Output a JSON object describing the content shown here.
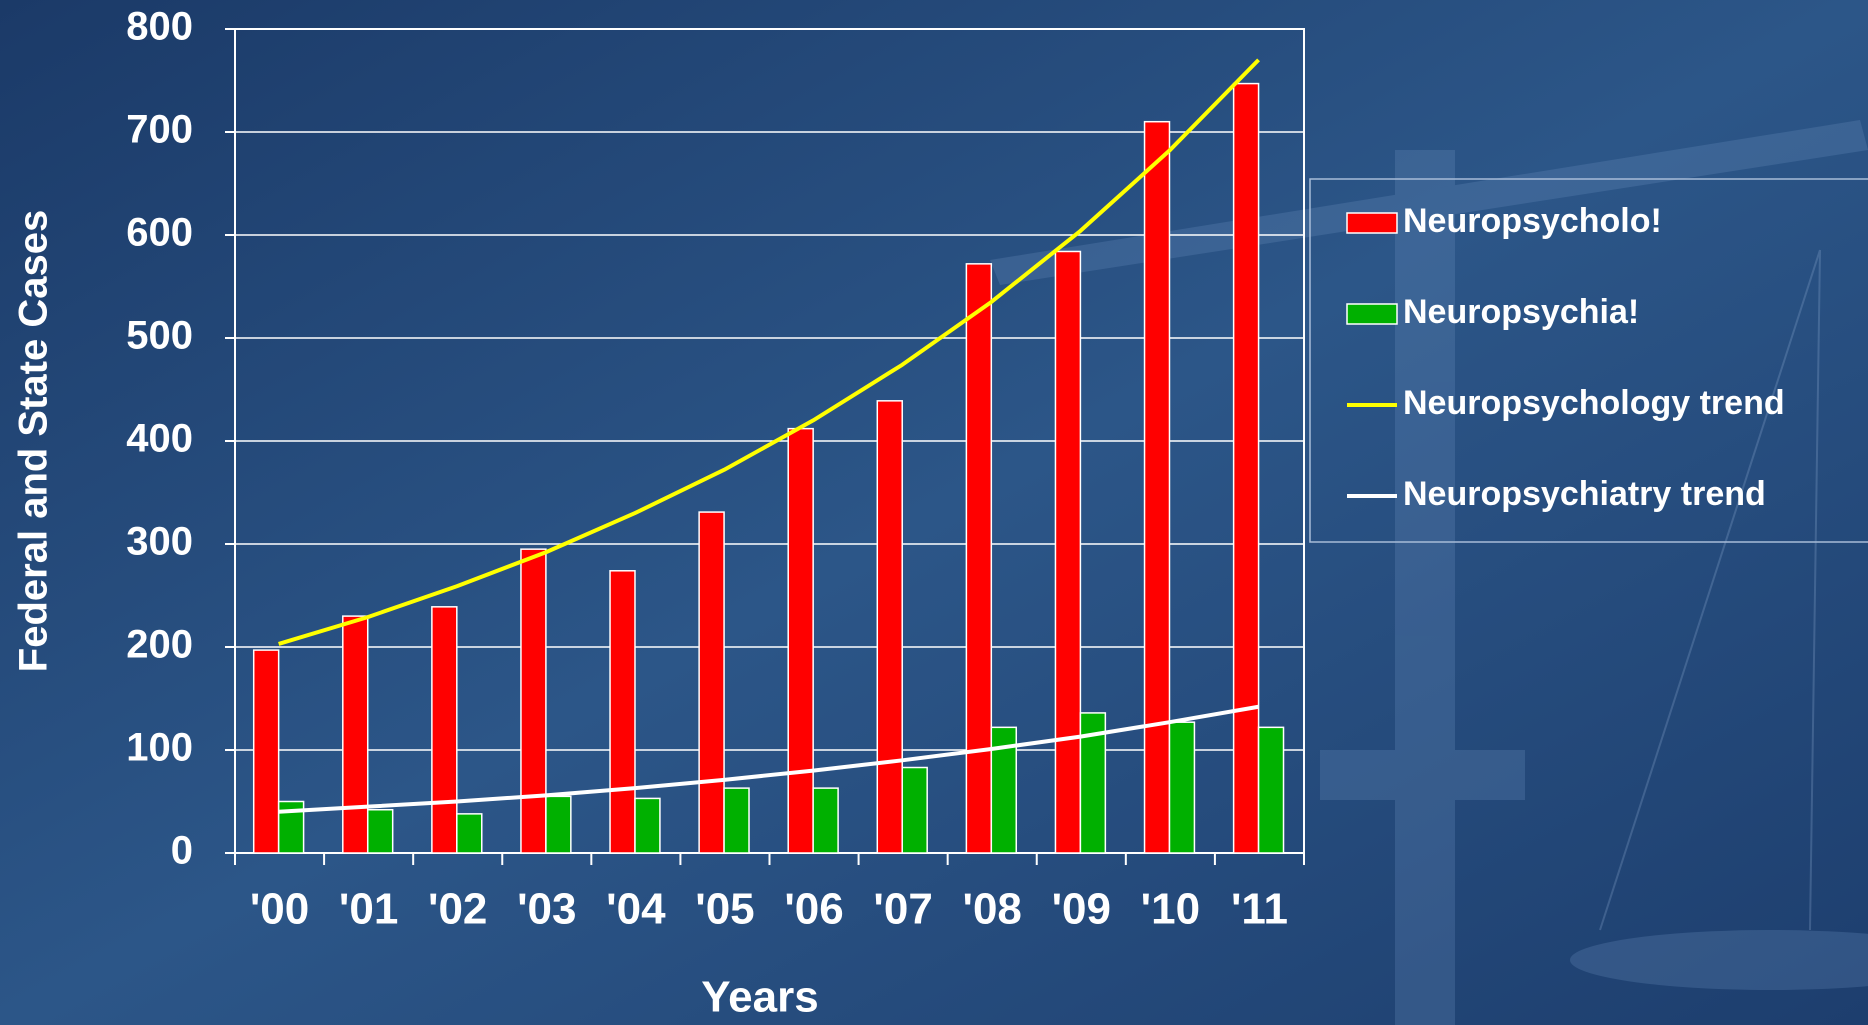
{
  "chart_data": {
    "type": "bar",
    "x_label": "Years",
    "y_label": "Federal and State Cases",
    "categories": [
      "'00",
      "'01",
      "'02",
      "'03",
      "'04",
      "'05",
      "'06",
      "'07",
      "'08",
      "'09",
      "'10",
      "'11"
    ],
    "series": [
      {
        "name": "Neuropsycholo!",
        "type": "bar",
        "color": "#ff0000",
        "values": [
          197,
          230,
          239,
          295,
          274,
          331,
          412,
          439,
          572,
          584,
          710,
          747
        ]
      },
      {
        "name": "Neuropsychia!",
        "type": "bar",
        "color": "#00b000",
        "values": [
          50,
          42,
          38,
          55,
          53,
          63,
          63,
          83,
          122,
          136,
          127,
          122
        ]
      },
      {
        "name": "Neuropsychology trend",
        "type": "line",
        "color": "#ffff00",
        "values": [
          203,
          229,
          259,
          292,
          330,
          372,
          420,
          474,
          535,
          604,
          682,
          770
        ]
      },
      {
        "name": "Neuropsychiatry trend",
        "type": "line",
        "color": "#ffffff",
        "values": [
          40,
          45,
          50,
          56,
          63,
          71,
          80,
          90,
          101,
          113,
          127,
          142
        ]
      }
    ],
    "ylim": [
      0,
      800
    ],
    "yticks": [
      0,
      100,
      200,
      300,
      400,
      500,
      600,
      700,
      800
    ],
    "grid": true,
    "legend": "right"
  }
}
